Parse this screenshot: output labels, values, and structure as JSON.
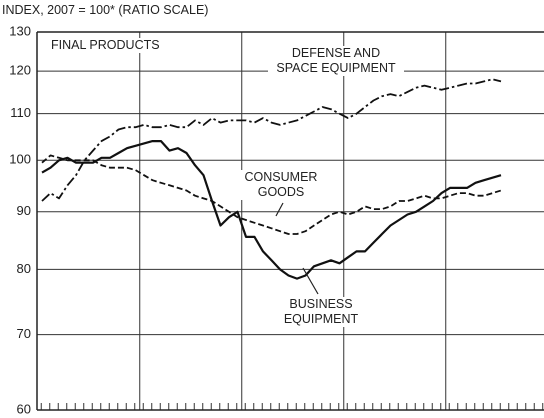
{
  "chart_data": {
    "type": "line",
    "title": "INDEX, 2007 = 100* (RATIO SCALE)",
    "subtitle": "FINAL PRODUCTS",
    "yscale": "log",
    "ylim": [
      60,
      130
    ],
    "yticks": [
      60,
      70,
      80,
      90,
      100,
      110,
      120,
      130
    ],
    "grid": true,
    "categories": [
      null,
      null,
      null,
      null,
      null,
      null,
      null,
      null,
      null,
      null,
      null,
      null,
      null,
      null,
      null,
      null,
      null,
      null,
      null,
      null,
      null,
      null,
      null,
      null,
      null,
      null,
      null,
      null,
      null,
      null,
      null,
      null,
      null,
      null,
      null,
      null,
      null,
      null,
      null,
      null,
      null,
      null,
      null,
      null,
      null,
      null,
      null,
      null,
      null,
      null,
      null,
      null,
      null,
      null,
      null
    ],
    "series": [
      {
        "name": "DEFENSE AND SPACE EQUIPMENT",
        "color": "#111111",
        "linestyle": "dashdot",
        "values": [
          92,
          93.5,
          92.5,
          95,
          97,
          100,
          102,
          104,
          105,
          106.5,
          107,
          107,
          107.5,
          107,
          107,
          107.5,
          107,
          107,
          108.5,
          107.5,
          109,
          108,
          108.5,
          108.5,
          108.5,
          108,
          109,
          108,
          107.5,
          108,
          108.5,
          109.5,
          110.5,
          111.5,
          111,
          110,
          109,
          110,
          111.5,
          113,
          114,
          114.5,
          114,
          115,
          116,
          116.5,
          116,
          115.5,
          116,
          116.5,
          117,
          117,
          117.5,
          118,
          117.5
        ]
      },
      {
        "name": "CONSUMER GOODS",
        "color": "#111111",
        "linestyle": "dashed",
        "values": [
          99.5,
          101,
          100.5,
          100,
          100,
          100,
          100,
          99,
          98.5,
          98.5,
          98.5,
          98,
          97,
          96,
          95.5,
          95,
          94.5,
          94,
          93,
          92.5,
          92,
          91,
          90,
          89,
          88.5,
          88,
          87.5,
          87,
          86.5,
          86,
          86,
          86.5,
          87.5,
          88.5,
          89.5,
          90,
          89.5,
          90,
          91,
          90.5,
          90.5,
          91,
          92,
          92,
          92.5,
          93,
          92.5,
          92.5,
          93,
          93.5,
          93.5,
          93,
          93,
          93.5,
          94
        ]
      },
      {
        "name": "BUSINESS EQUIPMENT",
        "color": "#111111",
        "linestyle": "solid",
        "values": [
          97.5,
          98.5,
          100,
          100.5,
          99.5,
          99.5,
          99.5,
          100.5,
          100.5,
          101.5,
          102.5,
          103,
          103.5,
          104,
          104,
          102,
          102.5,
          101.5,
          99,
          97,
          92,
          87.5,
          89,
          90,
          85.5,
          85.5,
          83,
          81.5,
          80,
          79,
          78.5,
          79,
          80.5,
          81,
          81.5,
          81,
          82,
          83,
          83,
          84.5,
          86,
          87.5,
          88.5,
          89.5,
          90,
          91,
          92,
          93.5,
          94.5,
          94.5,
          94.5,
          95.5,
          96,
          96.5,
          97
        ]
      }
    ]
  }
}
